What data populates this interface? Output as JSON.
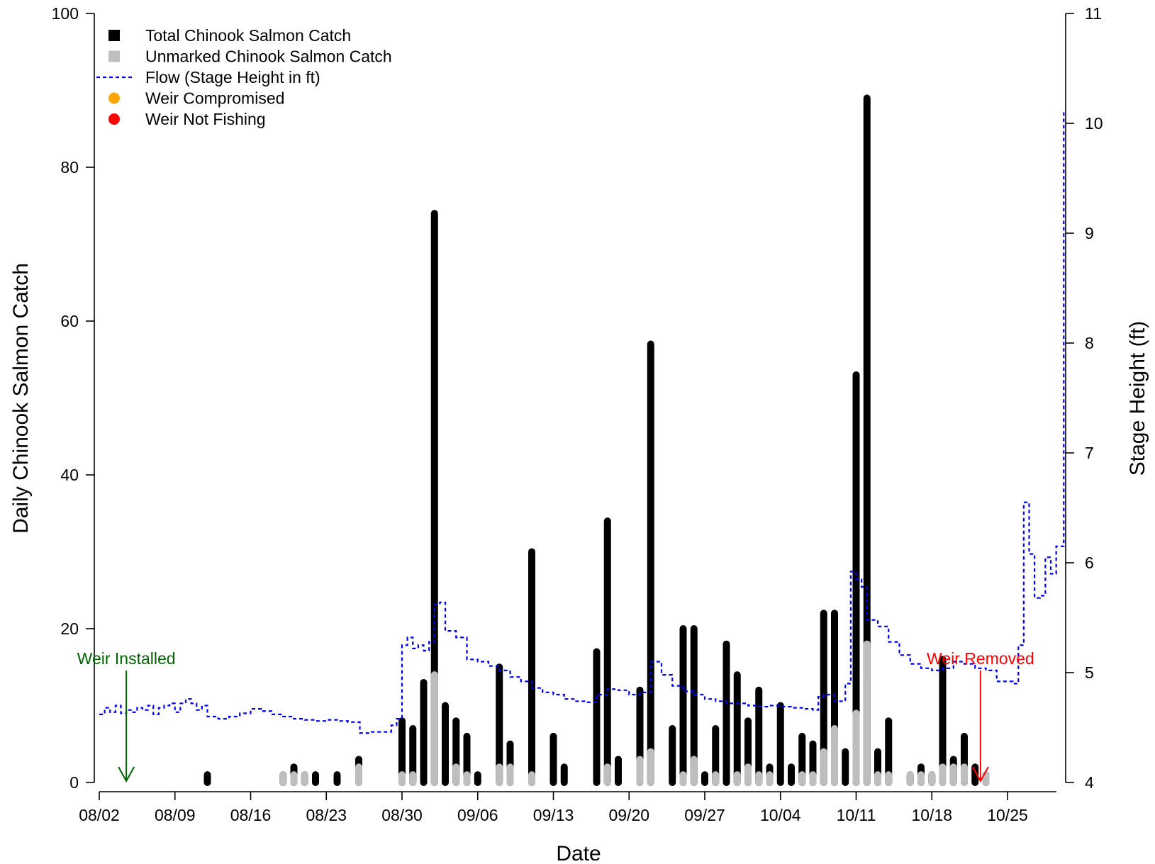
{
  "chart_data": {
    "type": "bar",
    "xlabel": "Date",
    "ylabel": "Daily Chinook Salmon Catch",
    "y2label": "Stage Height (ft)",
    "ylim": [
      0,
      100
    ],
    "y2lim": [
      4,
      11
    ],
    "yticks": [
      "0",
      "20",
      "40",
      "60",
      "80",
      "100"
    ],
    "y2ticks": [
      "4",
      "5",
      "6",
      "7",
      "8",
      "9",
      "10",
      "11"
    ],
    "xrange": [
      "08/02",
      "10/31"
    ],
    "xticks": [
      {
        "label": "08/02",
        "day": 0
      },
      {
        "label": "08/09",
        "day": 7
      },
      {
        "label": "08/16",
        "day": 14
      },
      {
        "label": "08/23",
        "day": 21
      },
      {
        "label": "08/30",
        "day": 28
      },
      {
        "label": "09/06",
        "day": 35
      },
      {
        "label": "09/13",
        "day": 42
      },
      {
        "label": "09/20",
        "day": 49
      },
      {
        "label": "09/27",
        "day": 56
      },
      {
        "label": "10/04",
        "day": 63
      },
      {
        "label": "10/11",
        "day": 70
      },
      {
        "label": "10/18",
        "day": 77
      },
      {
        "label": "10/25",
        "day": 84
      }
    ],
    "legend": {
      "position": "top-left",
      "items": [
        {
          "label": "Total Chinook Salmon Catch",
          "symbol": "square",
          "color": "#000000"
        },
        {
          "label": "Unmarked Chinook Salmon Catch",
          "symbol": "square",
          "color": "#bebebe"
        },
        {
          "label": "Flow (Stage Height in ft)",
          "symbol": "dotted-line",
          "color": "#0000ff"
        },
        {
          "label": "Weir Compromised",
          "symbol": "circle",
          "color": "#ffa500"
        },
        {
          "label": "Weir Not Fishing",
          "symbol": "circle",
          "color": "#ff0000"
        }
      ]
    },
    "annotations": [
      {
        "label": "Weir Installed",
        "day": 2.5,
        "color": "#006400"
      },
      {
        "label": "Weir Removed",
        "day": 81.5,
        "color": "#ff0000"
      }
    ],
    "catch": [
      {
        "day": 10,
        "total": 1,
        "unmarked": 0
      },
      {
        "day": 17,
        "total": 1,
        "unmarked": 1
      },
      {
        "day": 18,
        "total": 2,
        "unmarked": 1
      },
      {
        "day": 19,
        "total": 1,
        "unmarked": 1
      },
      {
        "day": 20,
        "total": 1,
        "unmarked": 0
      },
      {
        "day": 22,
        "total": 1,
        "unmarked": 0
      },
      {
        "day": 24,
        "total": 3,
        "unmarked": 2
      },
      {
        "day": 28,
        "total": 8,
        "unmarked": 1
      },
      {
        "day": 29,
        "total": 7,
        "unmarked": 1
      },
      {
        "day": 30,
        "total": 13,
        "unmarked": 0
      },
      {
        "day": 31,
        "total": 74,
        "unmarked": 14
      },
      {
        "day": 32,
        "total": 10,
        "unmarked": 0
      },
      {
        "day": 33,
        "total": 8,
        "unmarked": 2
      },
      {
        "day": 34,
        "total": 6,
        "unmarked": 1
      },
      {
        "day": 35,
        "total": 1,
        "unmarked": 0
      },
      {
        "day": 37,
        "total": 15,
        "unmarked": 2
      },
      {
        "day": 38,
        "total": 5,
        "unmarked": 2
      },
      {
        "day": 40,
        "total": 30,
        "unmarked": 1
      },
      {
        "day": 42,
        "total": 6,
        "unmarked": 0
      },
      {
        "day": 43,
        "total": 2,
        "unmarked": 0
      },
      {
        "day": 46,
        "total": 17,
        "unmarked": 0
      },
      {
        "day": 47,
        "total": 34,
        "unmarked": 2
      },
      {
        "day": 48,
        "total": 3,
        "unmarked": 0
      },
      {
        "day": 50,
        "total": 12,
        "unmarked": 3
      },
      {
        "day": 51,
        "total": 57,
        "unmarked": 4
      },
      {
        "day": 53,
        "total": 7,
        "unmarked": 0
      },
      {
        "day": 54,
        "total": 20,
        "unmarked": 1
      },
      {
        "day": 55,
        "total": 20,
        "unmarked": 3
      },
      {
        "day": 56,
        "total": 1,
        "unmarked": 0
      },
      {
        "day": 57,
        "total": 7,
        "unmarked": 1
      },
      {
        "day": 58,
        "total": 18,
        "unmarked": 0
      },
      {
        "day": 59,
        "total": 14,
        "unmarked": 1
      },
      {
        "day": 60,
        "total": 8,
        "unmarked": 2
      },
      {
        "day": 61,
        "total": 12,
        "unmarked": 1
      },
      {
        "day": 62,
        "total": 2,
        "unmarked": 1
      },
      {
        "day": 63,
        "total": 10,
        "unmarked": 0
      },
      {
        "day": 64,
        "total": 2,
        "unmarked": 0
      },
      {
        "day": 65,
        "total": 6,
        "unmarked": 1
      },
      {
        "day": 66,
        "total": 5,
        "unmarked": 1
      },
      {
        "day": 67,
        "total": 22,
        "unmarked": 4
      },
      {
        "day": 68,
        "total": 22,
        "unmarked": 7
      },
      {
        "day": 69,
        "total": 4,
        "unmarked": 0
      },
      {
        "day": 70,
        "total": 53,
        "unmarked": 9
      },
      {
        "day": 71,
        "total": 89,
        "unmarked": 18
      },
      {
        "day": 72,
        "total": 4,
        "unmarked": 1
      },
      {
        "day": 73,
        "total": 8,
        "unmarked": 1
      },
      {
        "day": 75,
        "total": 1,
        "unmarked": 1
      },
      {
        "day": 76,
        "total": 2,
        "unmarked": 1
      },
      {
        "day": 77,
        "total": 1,
        "unmarked": 1
      },
      {
        "day": 78,
        "total": 16,
        "unmarked": 2
      },
      {
        "day": 79,
        "total": 3,
        "unmarked": 2
      },
      {
        "day": 80,
        "total": 6,
        "unmarked": 2
      },
      {
        "day": 81,
        "total": 2,
        "unmarked": 0
      },
      {
        "day": 82,
        "total": 1,
        "unmarked": 1
      }
    ],
    "stage_height": [
      [
        0,
        4.62
      ],
      [
        0.5,
        4.68
      ],
      [
        1,
        4.64
      ],
      [
        1.5,
        4.7
      ],
      [
        2,
        4.63
      ],
      [
        2.5,
        4.66
      ],
      [
        3,
        4.64
      ],
      [
        3.5,
        4.68
      ],
      [
        4,
        4.66
      ],
      [
        4.5,
        4.7
      ],
      [
        5,
        4.62
      ],
      [
        5.5,
        4.68
      ],
      [
        6,
        4.7
      ],
      [
        6.5,
        4.72
      ],
      [
        7,
        4.64
      ],
      [
        7.5,
        4.72
      ],
      [
        8,
        4.76
      ],
      [
        8.5,
        4.72
      ],
      [
        9,
        4.66
      ],
      [
        9.5,
        4.7
      ],
      [
        10,
        4.6
      ],
      [
        11,
        4.58
      ],
      [
        12,
        4.6
      ],
      [
        13,
        4.63
      ],
      [
        14,
        4.67
      ],
      [
        15,
        4.65
      ],
      [
        16,
        4.62
      ],
      [
        17,
        4.6
      ],
      [
        18,
        4.58
      ],
      [
        19,
        4.57
      ],
      [
        20,
        4.56
      ],
      [
        21,
        4.57
      ],
      [
        22,
        4.56
      ],
      [
        23,
        4.55
      ],
      [
        24,
        4.55
      ],
      [
        24.1,
        4.45
      ],
      [
        25,
        4.46
      ],
      [
        26,
        4.46
      ],
      [
        27,
        4.52
      ],
      [
        27.5,
        4.58
      ],
      [
        28,
        5.25
      ],
      [
        28.5,
        5.32
      ],
      [
        29,
        5.22
      ],
      [
        29.5,
        5.25
      ],
      [
        30,
        5.2
      ],
      [
        30.5,
        5.28
      ],
      [
        31,
        5.62
      ],
      [
        31.5,
        5.64
      ],
      [
        32,
        5.38
      ],
      [
        33,
        5.32
      ],
      [
        34,
        5.12
      ],
      [
        35,
        5.1
      ],
      [
        36,
        5.06
      ],
      [
        37,
        5.02
      ],
      [
        38,
        4.96
      ],
      [
        39,
        4.92
      ],
      [
        40,
        4.86
      ],
      [
        41,
        4.82
      ],
      [
        42,
        4.8
      ],
      [
        43,
        4.76
      ],
      [
        44,
        4.74
      ],
      [
        45,
        4.73
      ],
      [
        46,
        4.8
      ],
      [
        47,
        4.85
      ],
      [
        48,
        4.84
      ],
      [
        49,
        4.8
      ],
      [
        50,
        4.82
      ],
      [
        51,
        5.1
      ],
      [
        52,
        4.98
      ],
      [
        53,
        4.88
      ],
      [
        54,
        4.83
      ],
      [
        55,
        4.8
      ],
      [
        56,
        4.76
      ],
      [
        57,
        4.74
      ],
      [
        58,
        4.72
      ],
      [
        59,
        4.72
      ],
      [
        60,
        4.7
      ],
      [
        61,
        4.69
      ],
      [
        62,
        4.7
      ],
      [
        63,
        4.69
      ],
      [
        64,
        4.68
      ],
      [
        65,
        4.67
      ],
      [
        66,
        4.66
      ],
      [
        66.5,
        4.78
      ],
      [
        67,
        4.8
      ],
      [
        68,
        4.74
      ],
      [
        69,
        4.9
      ],
      [
        69.5,
        5.92
      ],
      [
        70,
        5.85
      ],
      [
        70.5,
        5.78
      ],
      [
        71,
        5.48
      ],
      [
        72,
        5.42
      ],
      [
        73,
        5.28
      ],
      [
        74,
        5.16
      ],
      [
        75,
        5.08
      ],
      [
        76,
        5.04
      ],
      [
        77,
        5.02
      ],
      [
        78,
        5.04
      ],
      [
        79,
        5.1
      ],
      [
        80,
        5.08
      ],
      [
        81,
        5.04
      ],
      [
        82,
        5.02
      ],
      [
        83,
        4.92
      ],
      [
        84,
        4.92
      ],
      [
        84.5,
        4.9
      ],
      [
        85,
        5.25
      ],
      [
        85.5,
        6.55
      ],
      [
        86,
        6.08
      ],
      [
        86.5,
        5.68
      ],
      [
        87,
        5.7
      ],
      [
        87.5,
        6.05
      ],
      [
        88,
        5.9
      ],
      [
        88.5,
        6.15
      ],
      [
        89,
        6.15
      ],
      [
        89.2,
        10.1
      ]
    ]
  }
}
